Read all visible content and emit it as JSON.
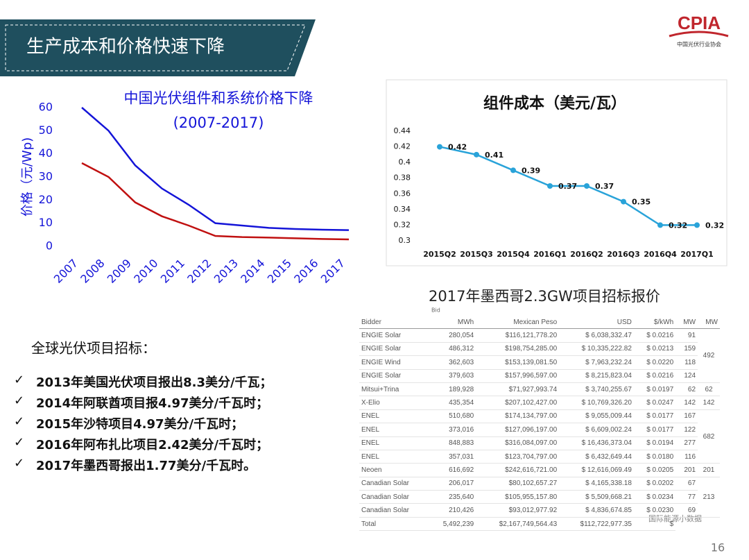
{
  "header": {
    "title": "生产成本和价格快速下降",
    "logo": "CPIA",
    "logo_caption": "中国光伏行业协会"
  },
  "chart_data": [
    {
      "type": "line",
      "title": "中国光伏组件和系统价格下降",
      "subtitle": "(2007-2017)",
      "y_label": "价格（元/Wp)",
      "categories": [
        "2007",
        "2008",
        "2009",
        "2010",
        "2011",
        "2012",
        "2013",
        "2014",
        "2015",
        "2016",
        "2017"
      ],
      "series": [
        {
          "color": "#1414d8",
          "values": [
            60,
            50,
            35,
            25,
            18,
            10,
            9,
            8,
            7.5,
            7.2,
            7
          ]
        },
        {
          "color": "#c01010",
          "values": [
            36,
            30,
            19,
            13,
            9,
            4.5,
            4,
            3.8,
            3.5,
            3.2,
            3
          ]
        }
      ],
      "ylim": [
        0,
        60
      ],
      "yticks": [
        0,
        10,
        20,
        30,
        40,
        50,
        60
      ]
    },
    {
      "type": "line",
      "title": "组件成本（美元/瓦）",
      "categories": [
        "2015Q2",
        "2015Q3",
        "2015Q4",
        "2016Q1",
        "2016Q2",
        "2016Q3",
        "2016Q4",
        "2017Q1"
      ],
      "series": [
        {
          "color": "#29a3d9",
          "values": [
            0.42,
            0.41,
            0.39,
            0.37,
            0.37,
            0.35,
            0.32,
            0.32
          ]
        }
      ],
      "ylim": [
        0.3,
        0.44
      ],
      "yticks": [
        0.3,
        0.32,
        0.34,
        0.36,
        0.38,
        0.4,
        0.42,
        0.44
      ]
    }
  ],
  "bullets": {
    "heading": "全球光伏项目招标：",
    "items": [
      "2013年美国光伏项目报出8.3美分/千瓦；",
      "2014年阿联酋项目报4.97美分/千瓦时；",
      "2015年沙特项目4.97美分/千瓦时；",
      "2016年阿布扎比项目2.42美分/千瓦时；",
      "2017年墨西哥报出1.77美分/千瓦时。"
    ]
  },
  "table": {
    "title": "2017年墨西哥2.3GW项目招标报价",
    "note": "Bid",
    "columns": [
      "Bidder",
      "MWh",
      "Mexican Peso",
      "USD",
      "$/kWh",
      "MW",
      "MW"
    ],
    "rows": [
      [
        "ENGIE Solar",
        "280,054",
        "$116,121,778.20",
        "$ 6,038,332.47",
        "$ 0.0216",
        "91",
        "492"
      ],
      [
        "ENGIE Solar",
        "486,312",
        "$198,754,285.00",
        "$ 10,335,222.82",
        "$ 0.0213",
        "159",
        null
      ],
      [
        "ENGIE Wind",
        "362,603",
        "$153,139,081.50",
        "$ 7,963,232.24",
        "$ 0.0220",
        "118",
        null
      ],
      [
        "ENGIE Solar",
        "379,603",
        "$157,996,597.00",
        "$ 8,215,823.04",
        "$ 0.0216",
        "124",
        null
      ],
      [
        "Mitsui+Trina",
        "189,928",
        "$71,927,993.74",
        "$ 3,740,255.67",
        "$ 0.0197",
        "62",
        "62"
      ],
      [
        "X-Elio",
        "435,354",
        "$207,102,427.00",
        "$ 10,769,326.20",
        "$ 0.0247",
        "142",
        "142"
      ],
      [
        "ENEL",
        "510,680",
        "$174,134,797.00",
        "$ 9,055,009.44",
        "$ 0.0177",
        "167",
        "682"
      ],
      [
        "ENEL",
        "373,016",
        "$127,096,197.00",
        "$ 6,609,002.24",
        "$ 0.0177",
        "122",
        null
      ],
      [
        "ENEL",
        "848,883",
        "$316,084,097.00",
        "$ 16,436,373.04",
        "$ 0.0194",
        "277",
        null
      ],
      [
        "ENEL",
        "357,031",
        "$123,704,797.00",
        "$ 6,432,649.44",
        "$ 0.0180",
        "116",
        null
      ],
      [
        "Neoen",
        "616,692",
        "$242,616,721.00",
        "$ 12,616,069.49",
        "$ 0.0205",
        "201",
        "201"
      ],
      [
        "Canadian Solar",
        "206,017",
        "$80,102,657.27",
        "$ 4,165,338.18",
        "$ 0.0202",
        "67",
        "213"
      ],
      [
        "Canadian Solar",
        "235,640",
        "$105,955,157.80",
        "$ 5,509,668.21",
        "$ 0.0234",
        "77",
        null
      ],
      [
        "Canadian Solar",
        "210,426",
        "$93,012,977.92",
        "$ 4,836,674.85",
        "$ 0.0230",
        "69",
        null
      ]
    ],
    "total": [
      "Total",
      "5,492,239",
      "$2,167,749,564.43",
      "$112,722,977.35",
      "$"
    ]
  },
  "watermark": "国际能源小数据",
  "page_number": "16"
}
